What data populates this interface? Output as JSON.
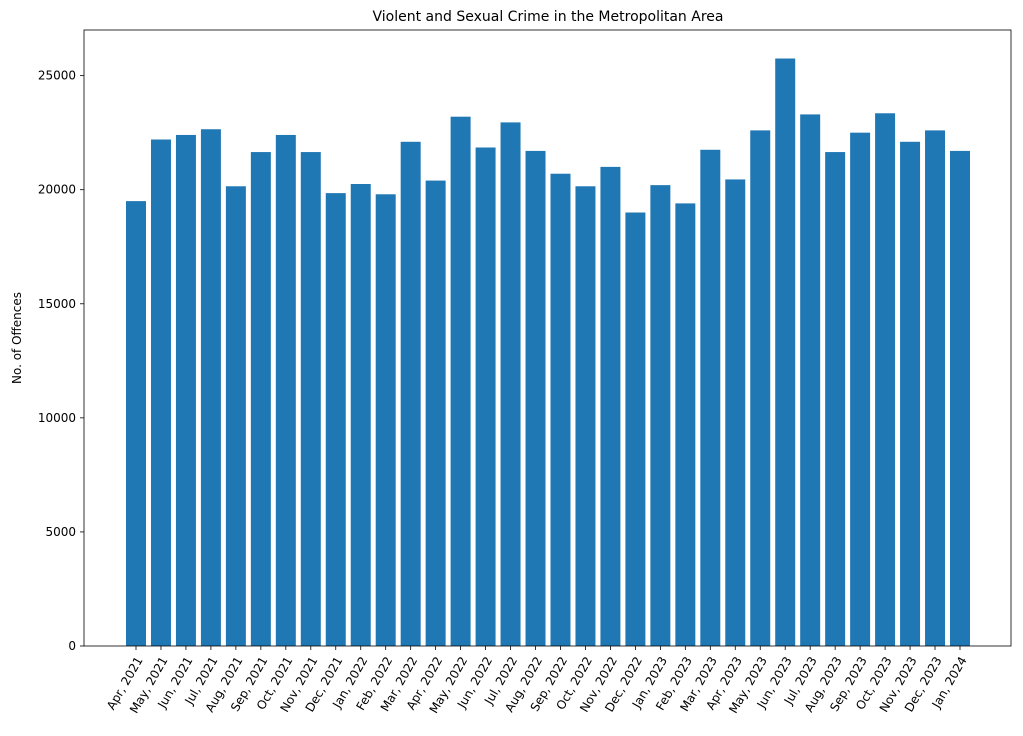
{
  "chart_data": {
    "type": "bar",
    "title": "Violent and Sexual Crime in the Metropolitan Area",
    "xlabel": "",
    "ylabel": "No. of Offences",
    "ylim": [
      0,
      27000
    ],
    "yticks": [
      0,
      5000,
      10000,
      15000,
      20000,
      25000
    ],
    "ytick_labels": [
      "0",
      "5000",
      "10000",
      "15000",
      "20000",
      "25000"
    ],
    "grid": false,
    "bar_color": "#1f77b4",
    "categories": [
      "Apr, 2021",
      "May, 2021",
      "Jun, 2021",
      "Jul, 2021",
      "Aug, 2021",
      "Sep, 2021",
      "Oct, 2021",
      "Nov, 2021",
      "Dec, 2021",
      "Jan, 2022",
      "Feb, 2022",
      "Mar, 2022",
      "Apr, 2022",
      "May, 2022",
      "Jun, 2022",
      "Jul, 2022",
      "Aug, 2022",
      "Sep, 2022",
      "Oct, 2022",
      "Nov, 2022",
      "Dec, 2022",
      "Jan, 2023",
      "Feb, 2023",
      "Mar, 2023",
      "Apr, 2023",
      "May, 2023",
      "Jun, 2023",
      "Jul, 2023",
      "Aug, 2023",
      "Sep, 2023",
      "Oct, 2023",
      "Nov, 2023",
      "Dec, 2023",
      "Jan, 2024"
    ],
    "values": [
      19500,
      22200,
      22400,
      22650,
      20150,
      21650,
      22400,
      21650,
      19850,
      20250,
      19800,
      22100,
      20400,
      23200,
      21850,
      22950,
      21700,
      20700,
      20150,
      21000,
      19000,
      20200,
      19400,
      21750,
      20450,
      22600,
      25750,
      23300,
      21650,
      22500,
      23350,
      22100,
      22600,
      21700
    ]
  }
}
